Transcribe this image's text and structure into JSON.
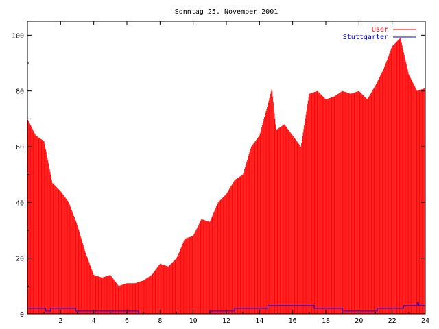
{
  "chart_data": {
    "type": "bar",
    "title": "Sonntag 25. November 2001",
    "xlabel": "",
    "ylabel": "",
    "xlim": [
      0,
      24
    ],
    "ylim": [
      0,
      105
    ],
    "x_ticks": [
      2,
      4,
      6,
      8,
      10,
      12,
      14,
      16,
      18,
      20,
      22,
      24
    ],
    "y_ticks": [
      0,
      20,
      40,
      60,
      80,
      100
    ],
    "x_tick_labels": [
      "2",
      "4",
      "6",
      "8",
      "10",
      "12",
      "14",
      "16",
      "18",
      "20",
      "22",
      "24"
    ],
    "y_tick_labels": [
      "0",
      "20",
      "40",
      "60",
      "80",
      "100"
    ],
    "grid": false,
    "legend_position": "top-right",
    "colors": {
      "User": "#ff0000",
      "Stuttgarter": "#0000ff",
      "axes": "#000000"
    },
    "series": [
      {
        "name": "User",
        "style": "impulses",
        "points": [
          [
            0.0,
            70
          ],
          [
            0.5,
            64
          ],
          [
            1.0,
            62
          ],
          [
            1.5,
            47
          ],
          [
            2.0,
            44
          ],
          [
            2.5,
            40
          ],
          [
            3.0,
            32
          ],
          [
            3.5,
            22
          ],
          [
            4.0,
            14
          ],
          [
            4.5,
            13
          ],
          [
            5.0,
            14
          ],
          [
            5.5,
            10
          ],
          [
            6.0,
            11
          ],
          [
            6.5,
            11
          ],
          [
            7.0,
            12
          ],
          [
            7.5,
            14
          ],
          [
            8.0,
            18
          ],
          [
            8.5,
            17
          ],
          [
            9.0,
            20
          ],
          [
            9.5,
            27
          ],
          [
            10.0,
            28
          ],
          [
            10.5,
            34
          ],
          [
            11.0,
            33
          ],
          [
            11.5,
            40
          ],
          [
            12.0,
            43
          ],
          [
            12.5,
            48
          ],
          [
            13.0,
            50
          ],
          [
            13.5,
            60
          ],
          [
            14.0,
            64
          ],
          [
            14.5,
            75
          ],
          [
            14.75,
            81
          ],
          [
            15.0,
            66
          ],
          [
            15.5,
            68
          ],
          [
            16.0,
            64
          ],
          [
            16.5,
            60
          ],
          [
            17.0,
            79
          ],
          [
            17.5,
            80
          ],
          [
            18.0,
            77
          ],
          [
            18.5,
            78
          ],
          [
            19.0,
            80
          ],
          [
            19.5,
            79
          ],
          [
            20.0,
            80
          ],
          [
            20.5,
            77
          ],
          [
            21.0,
            82
          ],
          [
            21.5,
            88
          ],
          [
            22.0,
            96
          ],
          [
            22.5,
            99
          ],
          [
            23.0,
            86
          ],
          [
            23.5,
            80
          ],
          [
            24.0,
            81
          ]
        ]
      },
      {
        "name": "Stuttgarter",
        "style": "steps",
        "points": [
          [
            0.0,
            2
          ],
          [
            1.1,
            1
          ],
          [
            1.4,
            2
          ],
          [
            2.9,
            1
          ],
          [
            6.7,
            0
          ],
          [
            11.0,
            1
          ],
          [
            12.5,
            2
          ],
          [
            14.5,
            3
          ],
          [
            17.3,
            2
          ],
          [
            19.0,
            1
          ],
          [
            21.1,
            2
          ],
          [
            22.7,
            3
          ],
          [
            23.5,
            4
          ],
          [
            23.6,
            3
          ],
          [
            24.0,
            3
          ]
        ]
      }
    ]
  }
}
